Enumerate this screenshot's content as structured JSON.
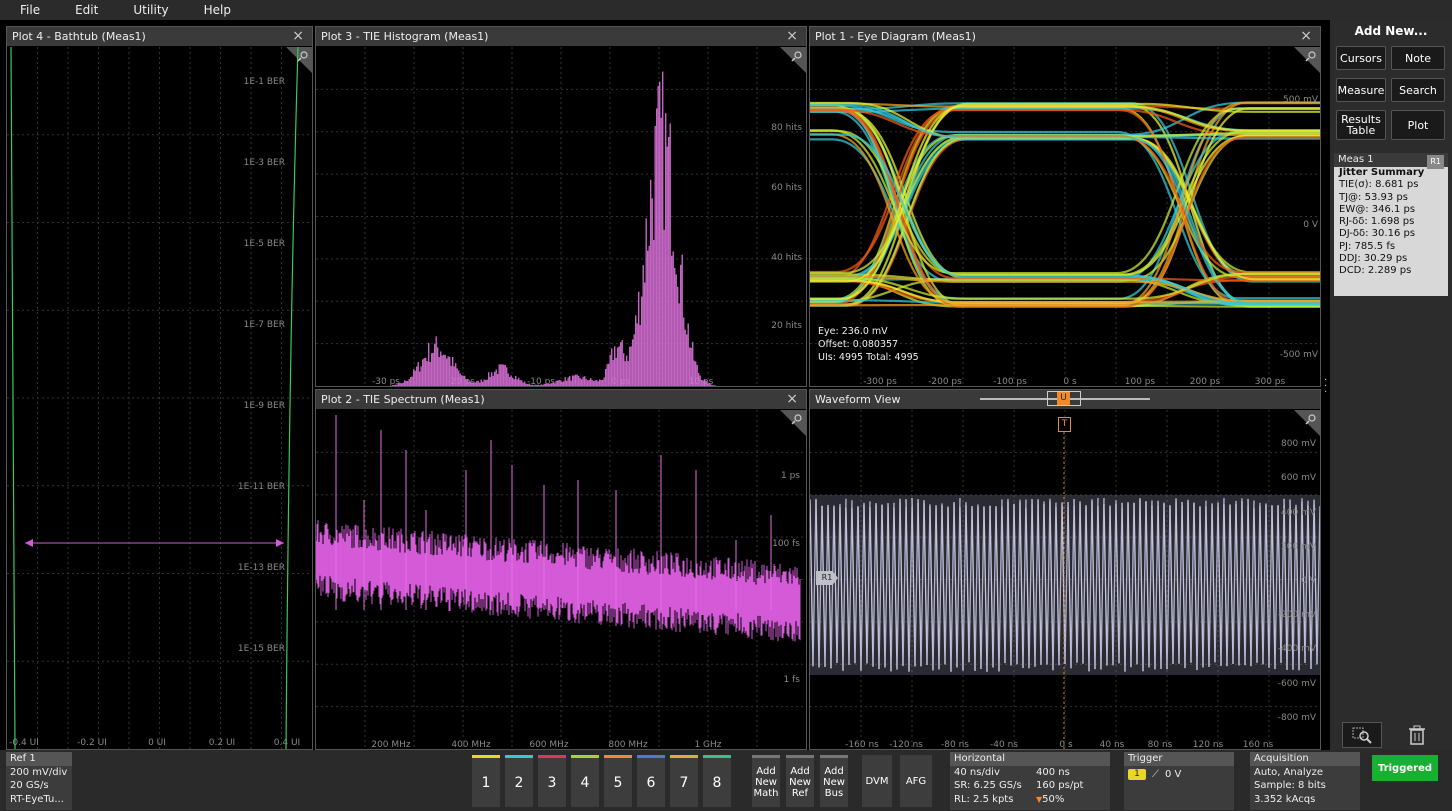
{
  "menu": [
    "File",
    "Edit",
    "Utility",
    "Help"
  ],
  "plots": {
    "bathtub": {
      "title": "Plot 4 - Bathtub (Meas1)",
      "y_ticks": [
        "1E-1 BER",
        "1E-3 BER",
        "1E-5 BER",
        "1E-7 BER",
        "1E-9 BER",
        "1E-11 BER",
        "1E-13 BER",
        "1E-15 BER"
      ],
      "x_ticks": [
        "-0.4 UI",
        "-0.2 UI",
        "0 UI",
        "0.2 UI",
        "0.4 UI"
      ]
    },
    "histogram": {
      "title": "Plot 3 - TIE Histogram (Meas1)",
      "y_ticks": [
        "80 hits",
        "60 hits",
        "40 hits",
        "20 hits"
      ],
      "x_ticks": [
        "-30 ps",
        "-20 ps",
        "-10 ps",
        "0 ps",
        "10 ps"
      ]
    },
    "eye": {
      "title": "Plot 1 - Eye Diagram (Meas1)",
      "y_ticks": [
        "500 mV",
        "0 V",
        "-500 mV"
      ],
      "x_ticks": [
        "-300 ps",
        "-200 ps",
        "-100 ps",
        "0 s",
        "100 ps",
        "200 ps",
        "300 ps"
      ],
      "overlay_lines": [
        "Eye: 236.0 mV",
        "Offset: 0.080357",
        "UIs: 4995   Total: 4995"
      ]
    },
    "spectrum": {
      "title": "Plot 2 - TIE Spectrum (Meas1)",
      "y_ticks": [
        "1 ps",
        "100 fs",
        "1 fs"
      ],
      "x_ticks": [
        "200 MHz",
        "400 MHz",
        "600 MHz",
        "800 MHz",
        "1 GHz"
      ]
    },
    "waveform": {
      "title": "Waveform View",
      "y_ticks": [
        "800 mV",
        "600 mV",
        "400 mV",
        "200 mV",
        "0 V",
        "-200 mV",
        "-400 mV",
        "-600 mV",
        "-800 mV"
      ],
      "x_ticks": [
        "-160 ns",
        "-120 ns",
        "-80 ns",
        "-40 ns",
        "0 s",
        "40 ns",
        "80 ns",
        "120 ns",
        "160 ns"
      ],
      "ref_label": "R1",
      "trigger_marker": "T",
      "position_marker": "U"
    }
  },
  "sidebar": {
    "add_new": "Add New...",
    "buttons": {
      "cursors": "Cursors",
      "note": "Note",
      "measure": "Measure",
      "search": "Search",
      "results_table": "Results Table",
      "plot": "Plot"
    },
    "meas": {
      "title": "Meas 1",
      "badge": "R1",
      "header": "Jitter Summary",
      "rows": [
        "TIE(σ): 8.681 ps",
        "TJ@: 53.93 ps",
        "EW@: 346.1 ps",
        "RJ-δδ: 1.698 ps",
        "DJ-δδ: 30.16 ps",
        "PJ: 785.5 fs",
        "DDJ: 30.29 ps",
        "DCD: 2.289 ps"
      ]
    }
  },
  "bottom": {
    "ref": {
      "title": "Ref 1",
      "l1": "200 mV/div",
      "l2": "20 GS/s",
      "l3": "RT-EyeTu..."
    },
    "channels": [
      {
        "label": "1",
        "color": "#e8d62a"
      },
      {
        "label": "2",
        "color": "#35c9d6"
      },
      {
        "label": "3",
        "color": "#e0394a"
      },
      {
        "label": "4",
        "color": "#a6d23a"
      },
      {
        "label": "5",
        "color": "#f08a2a"
      },
      {
        "label": "6",
        "color": "#4a7bd8"
      },
      {
        "label": "7",
        "color": "#e8a838"
      },
      {
        "label": "8",
        "color": "#3ac08a"
      }
    ],
    "add_math": "Add New Math",
    "add_ref": "Add New Ref",
    "add_bus": "Add New Bus",
    "dvm": "DVM",
    "afg": "AFG",
    "horizontal": {
      "title": "Horizontal",
      "a1": "40 ns/div",
      "b1": "400 ns",
      "a2": "SR: 6.25 GS/s",
      "b2": "160 ps/pt",
      "a3": "RL: 2.5 kpts",
      "b3": "50%"
    },
    "trigger": {
      "title": "Trigger",
      "source": "1",
      "level": "0 V"
    },
    "acquisition": {
      "title": "Acquisition",
      "l1": "Auto,   Analyze",
      "l2": "Sample: 8 bits",
      "l3": "3.352 kAcqs"
    },
    "status": "Triggered"
  }
}
